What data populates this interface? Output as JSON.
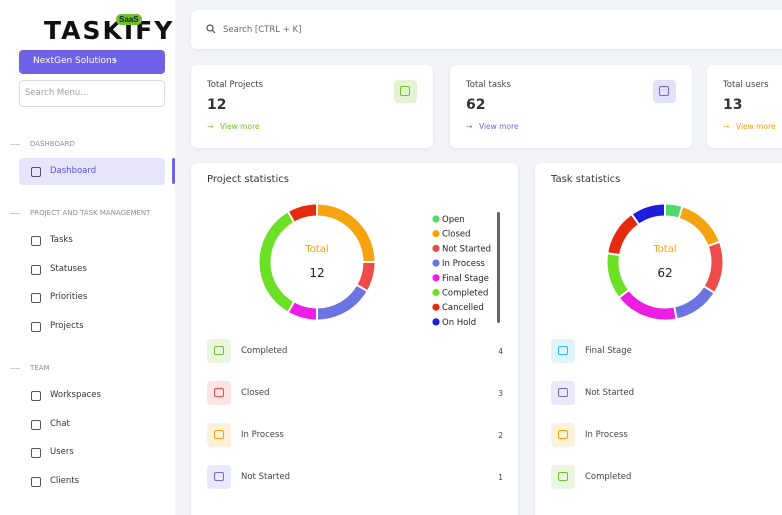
{
  "logo": {
    "name": "TASKIFY",
    "badge": "SaaS"
  },
  "sidebar": {
    "workspace_button": "NextGen Solutions",
    "search_placeholder": "Search Menu...",
    "sections": [
      {
        "title": "DASHBOARD",
        "items": [
          "Dashboard"
        ]
      },
      {
        "title": "PROJECT AND TASK MANAGEMENT",
        "items": [
          "Tasks",
          "Statuses",
          "Priorities",
          "Projects"
        ]
      },
      {
        "title": "TEAM",
        "items": [
          "Workspaces",
          "Chat",
          "Users",
          "Clients"
        ]
      }
    ]
  },
  "search": {
    "placeholder": "Search [CTRL + K]"
  },
  "cards": [
    {
      "title": "Total Projects",
      "value": 12,
      "link": "View more",
      "color": "#71c02b"
    },
    {
      "title": "Total tasks",
      "value": 62,
      "link": "View more",
      "color": "#6f6bd8"
    },
    {
      "title": "Total users",
      "value": 13,
      "link": "View more",
      "color": "#f2a20c"
    }
  ],
  "project_statistics": {
    "title": "Project statistics",
    "total_label": "Total",
    "total": 12,
    "series": [
      {
        "name": "Open",
        "color": "#54d66f",
        "value": 0
      },
      {
        "name": "Closed",
        "color": "#f5a30f",
        "value": 3
      },
      {
        "name": "Not Started",
        "color": "#ef4b4b",
        "value": 1
      },
      {
        "name": "In Process",
        "color": "#6b74e0",
        "value": 2
      },
      {
        "name": "Final Stage",
        "color": "#ee1de6",
        "value": 1
      },
      {
        "name": "Completed",
        "color": "#6be024",
        "value": 4
      },
      {
        "name": "Cancelled",
        "color": "#e62a0e",
        "value": 1
      },
      {
        "name": "On Hold",
        "color": "#1d1de0",
        "value": 0
      }
    ],
    "list": [
      {
        "label": "Completed",
        "count": 4,
        "color": "#71c02b"
      },
      {
        "label": "Closed",
        "count": 3,
        "color": "#ef4b4b"
      },
      {
        "label": "In Process",
        "count": 2,
        "color": "#f2a20c"
      },
      {
        "label": "Not Started",
        "count": 1,
        "color": "#6f6bd8"
      }
    ]
  },
  "task_statistics": {
    "title": "Task statistics",
    "total_label": "Total",
    "total": 62,
    "segments": [
      {
        "color": "#54d66f",
        "value": 3
      },
      {
        "color": "#f5a30f",
        "value": 9
      },
      {
        "color": "#ef4b4b",
        "value": 9
      },
      {
        "color": "#6b74e0",
        "value": 8
      },
      {
        "color": "#ee1de6",
        "value": 11
      },
      {
        "color": "#6be024",
        "value": 8
      },
      {
        "color": "#e62a0e",
        "value": 8
      },
      {
        "color": "#1d1de0",
        "value": 6
      }
    ],
    "list": [
      {
        "label": "Final Stage",
        "color": "#2fb8e8"
      },
      {
        "label": "Not Started",
        "color": "#6f6bd8"
      },
      {
        "label": "In Process",
        "color": "#f2a20c"
      },
      {
        "label": "Completed",
        "color": "#71c02b"
      }
    ]
  }
}
